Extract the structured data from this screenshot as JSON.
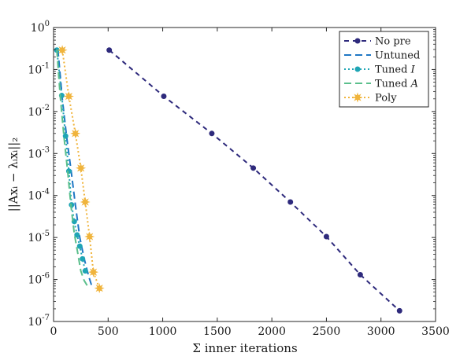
{
  "chart_data": {
    "type": "line",
    "xlabel": "Σ inner iterations",
    "ylabel": "||Axᵢ − λᵢxᵢ||₂",
    "xlim": [
      0,
      3500
    ],
    "ylim": [
      1e-07,
      1
    ],
    "yscale": "log",
    "grid": false,
    "legend_position": "top-right",
    "x_ticks": [
      0,
      500,
      1000,
      1500,
      2000,
      2500,
      3000,
      3500
    ],
    "x_tick_labels": [
      "0",
      "500",
      "1000",
      "1500",
      "2000",
      "2500",
      "3000",
      "3500"
    ],
    "y_ticks": [
      0,
      -1,
      -2,
      -3,
      -4,
      -5,
      -6,
      -7
    ],
    "y_tick_labels": [
      {
        "base": "10",
        "exp": "0"
      },
      {
        "base": "10",
        "exp": "-1"
      },
      {
        "base": "10",
        "exp": "-2"
      },
      {
        "base": "10",
        "exp": "-3"
      },
      {
        "base": "10",
        "exp": "-4"
      },
      {
        "base": "10",
        "exp": "-5"
      },
      {
        "base": "10",
        "exp": "-6"
      },
      {
        "base": "10",
        "exp": "-7"
      }
    ],
    "series": [
      {
        "name": "No pre",
        "color": "#2e2a7c",
        "dash": "6,5",
        "marker": "circle",
        "x": [
          510,
          1010,
          1450,
          1830,
          2170,
          2500,
          2810,
          3170
        ],
        "y": [
          0.29,
          0.023,
          0.003,
          0.00045,
          7e-05,
          1.05e-05,
          1.3e-06,
          1.8e-07
        ]
      },
      {
        "name": "Untuned",
        "color": "#1f77c4",
        "dash": "9,5",
        "marker": "none",
        "x": [
          40,
          80,
          120,
          160,
          200,
          240,
          280,
          320,
          350
        ],
        "y": [
          0.3,
          0.02,
          0.0025,
          0.0004,
          6e-05,
          1e-05,
          3.2e-06,
          1.25e-06,
          7e-07
        ]
      },
      {
        "name": "Tuned I",
        "color": "#1fa5b5",
        "dash": "2,3",
        "marker": "circle",
        "x": [
          30,
          75,
          110,
          140,
          165,
          190,
          215,
          240,
          265,
          290
        ],
        "y": [
          0.29,
          0.024,
          0.0026,
          0.00038,
          6e-05,
          2.4e-05,
          1.15e-05,
          6.2e-06,
          3.1e-06,
          1.6e-06
        ]
      },
      {
        "name": "Tuned A",
        "color": "#5bbf8c",
        "dash": "9,5",
        "marker": "none",
        "x": [
          30,
          60,
          95,
          130,
          160,
          190,
          220,
          250,
          280,
          310
        ],
        "y": [
          0.29,
          0.025,
          0.0025,
          0.00036,
          5.5e-05,
          1.25e-05,
          4.5e-06,
          1.6e-06,
          9.5e-07,
          7e-07
        ]
      },
      {
        "name": "Poly",
        "color": "#f0b43c",
        "dash": "2,3",
        "marker": "star",
        "x": [
          80,
          140,
          200,
          250,
          290,
          330,
          365,
          420
        ],
        "y": [
          0.29,
          0.023,
          0.003,
          0.00045,
          7e-05,
          1.05e-05,
          1.5e-06,
          6.2e-07
        ]
      }
    ]
  },
  "legend": {
    "items": [
      {
        "label": "No pre",
        "italic": ""
      },
      {
        "label": "Untuned",
        "italic": ""
      },
      {
        "label": "Tuned ",
        "italic": "I"
      },
      {
        "label": "Tuned ",
        "italic": "A"
      },
      {
        "label": "Poly",
        "italic": ""
      }
    ]
  }
}
